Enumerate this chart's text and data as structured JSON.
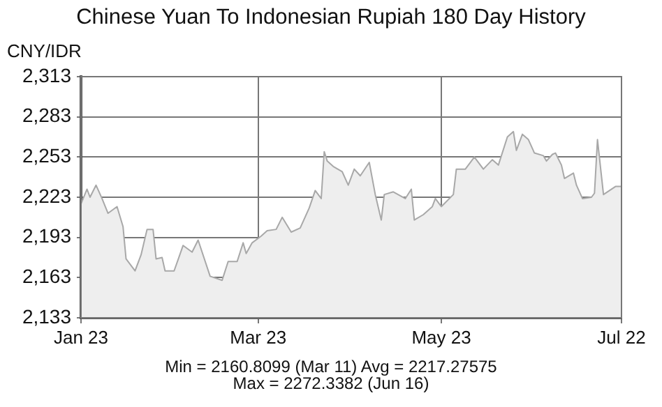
{
  "chart_data": {
    "type": "area",
    "title": "Chinese Yuan To Indonesian Rupiah 180 Day History",
    "ylabel": "CNY/IDR",
    "x": [
      "--01-23",
      "--01-25",
      "--01-26",
      "--01-28",
      "--01-30",
      "--02-01",
      "--02-04",
      "--02-06",
      "--02-07",
      "--02-10",
      "--02-12",
      "--02-14",
      "--02-16",
      "--02-17",
      "--02-19",
      "--02-20",
      "--02-23",
      "--02-26",
      "--03-01",
      "--03-03",
      "--03-07",
      "--03-11",
      "--03-13",
      "--03-16",
      "--03-18",
      "--03-19",
      "--03-21",
      "--03-24",
      "--03-26",
      "--03-29",
      "--03-31",
      "--04-03",
      "--04-06",
      "--04-09",
      "--04-11",
      "--04-13",
      "--04-14",
      "--04-15",
      "--04-17",
      "--04-20",
      "--04-22",
      "--04-24",
      "--04-26",
      "--04-29",
      "--05-01",
      "--05-03",
      "--05-04",
      "--05-07",
      "--05-11",
      "--05-13",
      "--05-14",
      "--05-17",
      "--05-20",
      "--05-21",
      "--05-23",
      "--05-27",
      "--05-28",
      "--05-31",
      "--06-03",
      "--06-06",
      "--06-09",
      "--06-11",
      "--06-14",
      "--06-16",
      "--06-17",
      "--06-19",
      "--06-21",
      "--06-23",
      "--06-26",
      "--06-27",
      "--06-29",
      "--06-30",
      "--07-02",
      "--07-03",
      "--07-06",
      "--07-07",
      "--07-09",
      "--07-12",
      "--07-13",
      "--07-14",
      "--07-16",
      "--07-20",
      "--07-22"
    ],
    "series": [
      {
        "color": "#a8a8a8",
        "values": [
          2218,
          2229,
          2223,
          2232,
          2222,
          2211,
          2216,
          2201,
          2177,
          2168,
          2180,
          2199,
          2199,
          2177,
          2178,
          2168,
          2168,
          2187,
          2182,
          2191,
          2164,
          2161,
          2175,
          2175,
          2189,
          2181,
          2189,
          2194,
          2198,
          2199,
          2208,
          2197,
          2200,
          2215,
          2228,
          2222,
          2257,
          2250,
          2246,
          2242,
          2232,
          2244,
          2239,
          2249,
          2225,
          2206,
          2225,
          2227,
          2222,
          2229,
          2206,
          2210,
          2216,
          2222,
          2216,
          2225,
          2244,
          2244,
          2253,
          2244,
          2251,
          2247,
          2268,
          2272,
          2258,
          2270,
          2266,
          2256,
          2254,
          2250,
          2255,
          2256,
          2247,
          2237,
          2241,
          2232,
          2222,
          2223,
          2226,
          2266,
          2225,
          2231,
          2231
        ]
      }
    ],
    "xlim": [
      "--01-23",
      "--07-22"
    ],
    "xticks": [
      {
        "value": "--01-23",
        "label": "Jan 23"
      },
      {
        "value": "--03-23",
        "label": "Mar 23"
      },
      {
        "value": "--05-23",
        "label": "May 23"
      },
      {
        "value": "--07-22",
        "label": "Jul 22"
      }
    ],
    "ylim": [
      2133,
      2313
    ],
    "yticks": [
      {
        "value": 2133,
        "label": "2,133"
      },
      {
        "value": 2163,
        "label": "2,163"
      },
      {
        "value": 2193,
        "label": "2,193"
      },
      {
        "value": 2223,
        "label": "2,223"
      },
      {
        "value": 2253,
        "label": "2,253"
      },
      {
        "value": 2283,
        "label": "2,283"
      },
      {
        "value": 2313,
        "label": "2,313"
      }
    ],
    "grid": true,
    "legend": false,
    "marker": "none",
    "line_style": "solid",
    "annotations": [
      "Min = 2160.8099 (Mar 11) Avg = 2217.27575",
      "Max = 2272.3382 (Jun 16)"
    ]
  }
}
